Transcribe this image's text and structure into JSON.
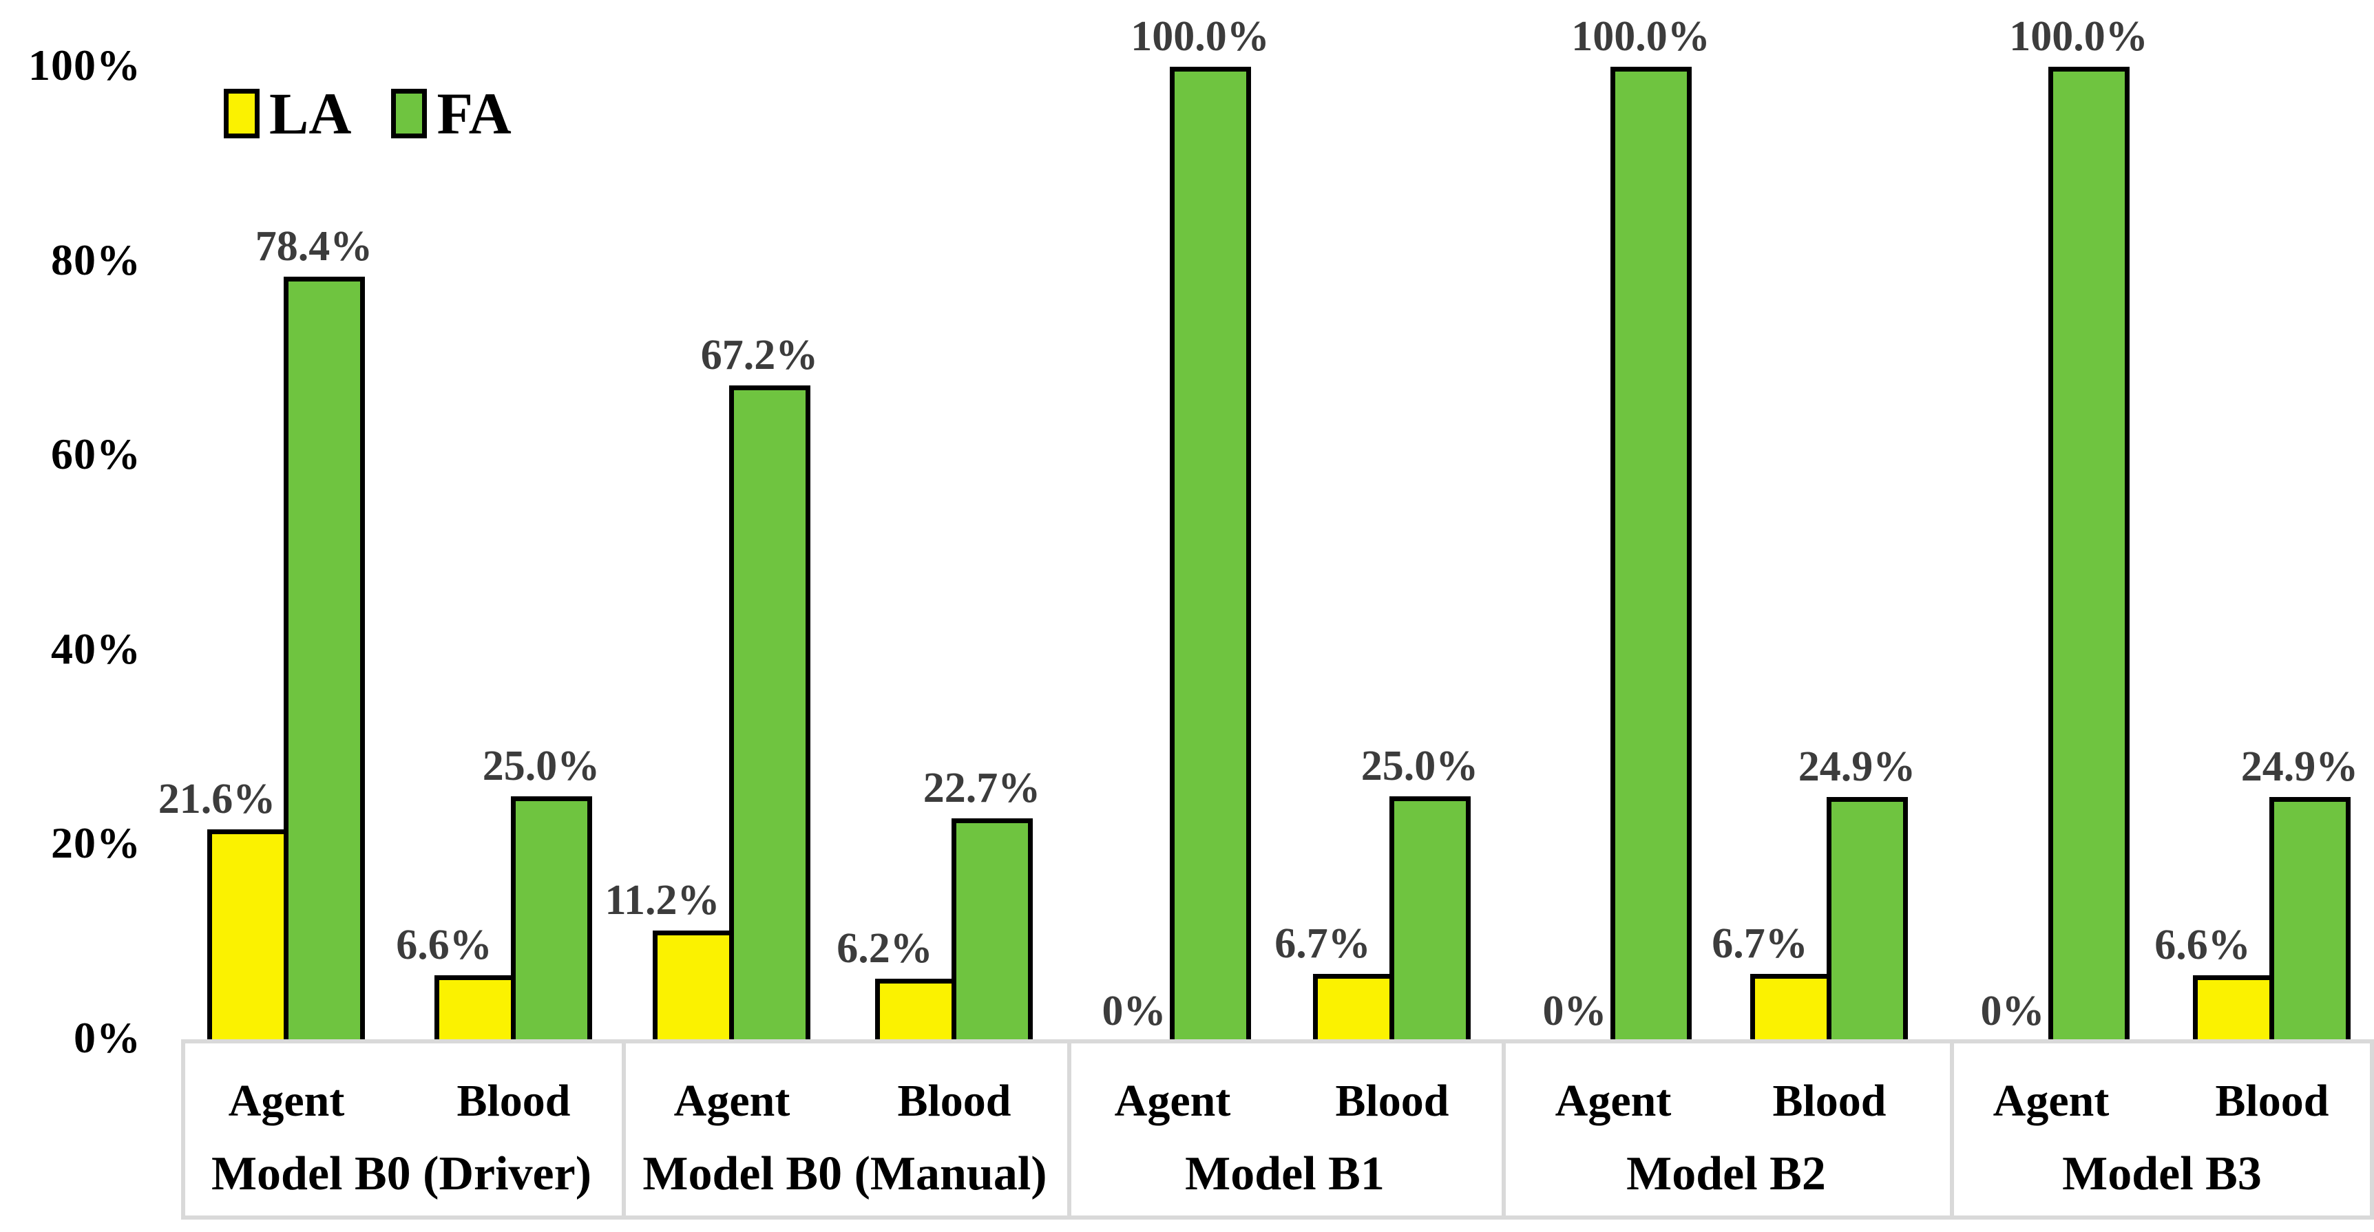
{
  "legend": {
    "items": [
      {
        "label": "LA",
        "color": "#FBF200"
      },
      {
        "label": "FA",
        "color": "#6FC440"
      }
    ]
  },
  "chart_data": {
    "type": "bar",
    "title": "",
    "grid": false,
    "legend_position": "top-left",
    "ylim": [
      0,
      100
    ],
    "ytick_labels": [
      "0%",
      "20%",
      "40%",
      "60%",
      "80%",
      "100%"
    ],
    "yticks_pct": [
      0,
      20,
      40,
      60,
      80,
      100
    ],
    "series": [
      {
        "name": "LA",
        "color": "#FBF200"
      },
      {
        "name": "FA",
        "color": "#6FC440"
      }
    ],
    "groups": [
      {
        "label": "Model B0 (Driver)",
        "pairs": [
          {
            "label": "Agent",
            "LA": 21.6,
            "FA": 78.4,
            "LA_text": "21.6%",
            "FA_text": "78.4%"
          },
          {
            "label": "Blood",
            "LA": 6.6,
            "FA": 25.0,
            "LA_text": "6.6%",
            "FA_text": "25.0%"
          }
        ]
      },
      {
        "label": "Model B0 (Manual)",
        "pairs": [
          {
            "label": "Agent",
            "LA": 11.2,
            "FA": 67.2,
            "LA_text": "11.2%",
            "FA_text": "67.2%"
          },
          {
            "label": "Blood",
            "LA": 6.2,
            "FA": 22.7,
            "LA_text": "6.2%",
            "FA_text": "22.7%"
          }
        ]
      },
      {
        "label": "Model B1",
        "pairs": [
          {
            "label": "Agent",
            "LA": 0,
            "FA": 100.0,
            "LA_text": "0%",
            "FA_text": "100.0%"
          },
          {
            "label": "Blood",
            "LA": 6.7,
            "FA": 25.0,
            "LA_text": "6.7%",
            "FA_text": "25.0%"
          }
        ]
      },
      {
        "label": "Model B2",
        "pairs": [
          {
            "label": "Agent",
            "LA": 0,
            "FA": 100.0,
            "LA_text": "0%",
            "FA_text": "100.0%"
          },
          {
            "label": "Blood",
            "LA": 6.7,
            "FA": 24.9,
            "LA_text": "6.7%",
            "FA_text": "24.9%"
          }
        ]
      },
      {
        "label": "Model B3",
        "pairs": [
          {
            "label": "Agent",
            "LA": 0,
            "FA": 100.0,
            "LA_text": "0%",
            "FA_text": "100.0%"
          },
          {
            "label": "Blood",
            "LA": 6.6,
            "FA": 24.9,
            "LA_text": "6.6%",
            "FA_text": "24.9%"
          }
        ]
      }
    ]
  },
  "colors": {
    "bar_border": "#000000",
    "value_label": "#3C3C3C",
    "axis_label": "#000000",
    "box_border": "#D9D9D9",
    "background": "#FFFFFF"
  }
}
